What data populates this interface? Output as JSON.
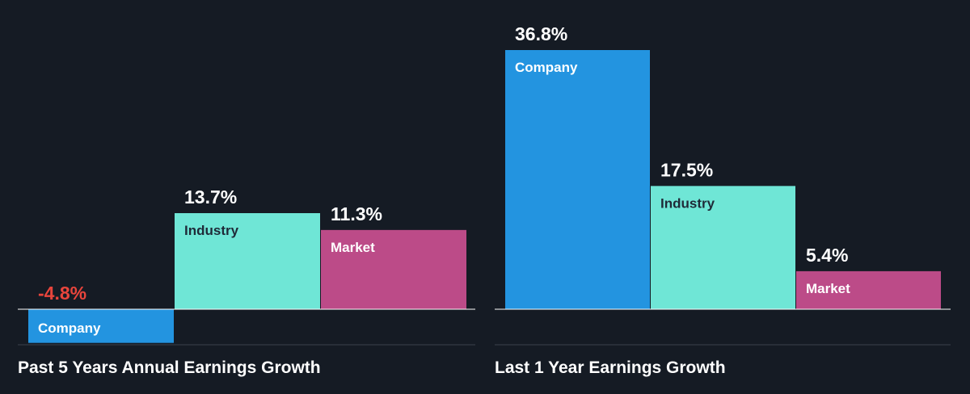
{
  "colors": {
    "background": "#151b24",
    "company": "#2394e0",
    "industry": "#6fe6d6",
    "market": "#bc4b88",
    "positive_text": "#ffffff",
    "negative_text": "#e8453c",
    "axis": "#ffffff",
    "divider": "#3a414d",
    "label_dark": "#1f2a38",
    "label_light": "#ffffff"
  },
  "chart_data": [
    {
      "type": "bar",
      "title": "Past 5 Years Annual Earnings Growth",
      "categories": [
        "Company",
        "Industry",
        "Market"
      ],
      "values": [
        -4.8,
        13.7,
        11.3
      ],
      "value_labels": [
        "-4.8%",
        "13.7%",
        "11.3%"
      ],
      "unit": "%",
      "ylim": [
        -4.8,
        13.7
      ],
      "grid": false,
      "legend": "none"
    },
    {
      "type": "bar",
      "title": "Last 1 Year Earnings Growth",
      "categories": [
        "Company",
        "Industry",
        "Market"
      ],
      "values": [
        36.8,
        17.5,
        5.4
      ],
      "value_labels": [
        "36.8%",
        "17.5%",
        "5.4%"
      ],
      "unit": "%",
      "ylim": [
        0,
        36.8
      ],
      "grid": false,
      "legend": "none"
    }
  ]
}
